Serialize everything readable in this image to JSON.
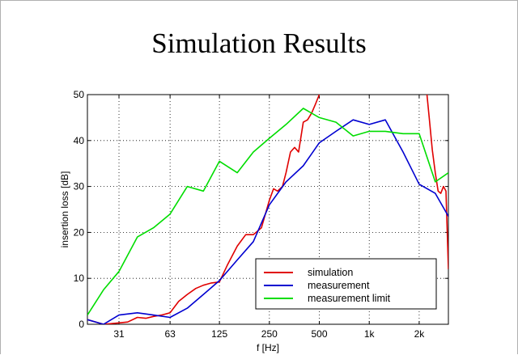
{
  "title": "Simulation Results",
  "chart_data": {
    "type": "line",
    "title": "Simulation Results",
    "xlabel": "f [Hz]",
    "ylabel": "insertion loss [dB]",
    "xscale": "log",
    "xlim": [
      20,
      3000
    ],
    "ylim": [
      0,
      50
    ],
    "grid": true,
    "legend_position": "bottom-right",
    "x_ticks": [
      {
        "value": 31,
        "label": "31"
      },
      {
        "value": 63,
        "label": "63"
      },
      {
        "value": 125,
        "label": "125"
      },
      {
        "value": 250,
        "label": "250"
      },
      {
        "value": 500,
        "label": "500"
      },
      {
        "value": 1000,
        "label": "1k"
      },
      {
        "value": 2000,
        "label": "2k"
      }
    ],
    "y_ticks": [
      0,
      10,
      20,
      30,
      40,
      50
    ],
    "series": [
      {
        "name": "simulation",
        "color": "#e00000",
        "x": [
          20,
          25,
          31,
          35,
          40,
          45,
          50,
          56,
          63,
          71,
          80,
          90,
          100,
          112,
          125,
          140,
          160,
          180,
          200,
          224,
          250,
          265,
          280,
          300,
          315,
          335,
          355,
          375,
          400,
          425,
          450,
          475,
          500,
          520,
          2200,
          2300,
          2400,
          2500,
          2600,
          2700,
          2800,
          2900,
          3000
        ],
        "y": [
          1,
          0,
          0.3,
          0.5,
          1.5,
          1.3,
          1.7,
          2.0,
          2.5,
          5,
          6.5,
          7.8,
          8.5,
          9.0,
          9.2,
          13,
          17,
          19.5,
          19.5,
          21,
          27,
          29.5,
          29,
          30,
          33,
          37.5,
          38.5,
          37.5,
          44,
          44.5,
          46,
          48,
          50,
          52,
          52,
          45,
          38,
          33,
          29,
          28.5,
          30,
          29,
          12
        ]
      },
      {
        "name": "measurement",
        "color": "#0000d0",
        "x": [
          20,
          25,
          31,
          40,
          50,
          63,
          80,
          100,
          125,
          160,
          200,
          250,
          315,
          400,
          500,
          630,
          800,
          1000,
          1250,
          1600,
          2000,
          2500,
          3000
        ],
        "y": [
          1,
          0,
          2,
          2.5,
          2,
          1.5,
          3.5,
          6.5,
          9.5,
          14,
          18,
          26,
          31,
          34.5,
          39.5,
          42,
          44.5,
          43.5,
          44.5,
          37.5,
          30.5,
          28.5,
          23.5
        ]
      },
      {
        "name": "measurement limit",
        "color": "#00dd00",
        "x": [
          20,
          25,
          31,
          40,
          50,
          63,
          80,
          100,
          125,
          160,
          200,
          250,
          315,
          400,
          500,
          630,
          800,
          1000,
          1250,
          1600,
          2000,
          2500,
          3000
        ],
        "y": [
          2,
          7.5,
          11.5,
          19,
          21,
          24,
          30,
          29,
          35.5,
          33,
          37.5,
          40.5,
          43.5,
          47,
          45,
          44,
          41,
          42,
          42,
          41.5,
          41.5,
          31,
          33
        ]
      }
    ]
  }
}
